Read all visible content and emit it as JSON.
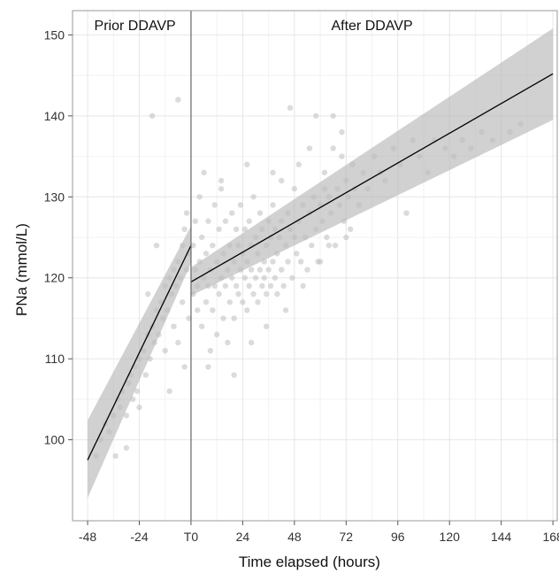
{
  "chart_data": {
    "type": "scatter",
    "xlabel": "Time elapsed (hours)",
    "ylabel": "PNa (mmol/L)",
    "xlim": [
      -55,
      170
    ],
    "ylim": [
      90,
      153
    ],
    "x_tick_values": [
      -48,
      -24,
      0,
      24,
      48,
      72,
      96,
      120,
      144,
      168
    ],
    "x_tick_labels": [
      "-48",
      "-24",
      "T0",
      "24",
      "48",
      "72",
      "96",
      "120",
      "144",
      "168"
    ],
    "y_ticks": [
      100,
      110,
      120,
      130,
      140,
      150
    ],
    "grid": true,
    "panel_labels": [
      {
        "text": "Prior DDAVP",
        "side": "left"
      },
      {
        "text": "After DDAVP",
        "side": "right"
      }
    ],
    "colors": {
      "points": "#bdbdbd",
      "fit_line": "#000000",
      "ci_band": "#b3b3b3",
      "separator": "#666666",
      "grid_major": "#e6e6e6",
      "grid_minor": "#f2f2f2"
    },
    "fit_segments": [
      {
        "name": "Prior DDAVP",
        "x": [
          -48,
          0
        ],
        "y": [
          97.5,
          124.0
        ],
        "ci_lower": [
          92.8,
          121.8
        ],
        "ci_upper": [
          102.4,
          126.4
        ]
      },
      {
        "name": "After DDAVP",
        "x": [
          0,
          168
        ],
        "y": [
          119.5,
          145.2
        ],
        "ci_lower": [
          117.8,
          139.5
        ],
        "ci_upper": [
          121.3,
          150.8
        ]
      }
    ],
    "points": [
      [
        -44,
        98
      ],
      [
        -42,
        100
      ],
      [
        -40,
        102
      ],
      [
        -38,
        101
      ],
      [
        -36,
        103
      ],
      [
        -35,
        98
      ],
      [
        -34,
        105
      ],
      [
        -33,
        104
      ],
      [
        -32,
        106
      ],
      [
        -30,
        103
      ],
      [
        -29,
        107
      ],
      [
        -28,
        108
      ],
      [
        -27,
        105
      ],
      [
        -26,
        109
      ],
      [
        -25,
        106
      ],
      [
        -24,
        110
      ],
      [
        -24,
        104
      ],
      [
        -22,
        111
      ],
      [
        -21,
        108
      ],
      [
        -20,
        113
      ],
      [
        -20,
        118
      ],
      [
        -19,
        110
      ],
      [
        -18,
        114
      ],
      [
        -17,
        112
      ],
      [
        -16,
        116
      ],
      [
        -15,
        113
      ],
      [
        -14,
        117
      ],
      [
        -13,
        115
      ],
      [
        -12,
        119
      ],
      [
        -12,
        111
      ],
      [
        -11,
        116
      ],
      [
        -10,
        120
      ],
      [
        -9,
        118
      ],
      [
        -8,
        121
      ],
      [
        -8,
        114
      ],
      [
        -7,
        119
      ],
      [
        -6,
        122
      ],
      [
        -6,
        112
      ],
      [
        -5,
        120
      ],
      [
        -4,
        124
      ],
      [
        -4,
        117
      ],
      [
        -3,
        126
      ],
      [
        -3,
        109
      ],
      [
        -2,
        121
      ],
      [
        -2,
        128
      ],
      [
        -1,
        123
      ],
      [
        -1,
        115
      ],
      [
        -6,
        142
      ],
      [
        -18,
        140
      ],
      [
        -30,
        99
      ],
      [
        -16,
        124
      ],
      [
        -10,
        106
      ],
      [
        1,
        118
      ],
      [
        1,
        124
      ],
      [
        2,
        121
      ],
      [
        2,
        127
      ],
      [
        3,
        116
      ],
      [
        3,
        119
      ],
      [
        4,
        122
      ],
      [
        4,
        130
      ],
      [
        5,
        114
      ],
      [
        5,
        125
      ],
      [
        6,
        120
      ],
      [
        6,
        133
      ],
      [
        7,
        117
      ],
      [
        7,
        123
      ],
      [
        8,
        119
      ],
      [
        8,
        127
      ],
      [
        9,
        111
      ],
      [
        9,
        121
      ],
      [
        10,
        116
      ],
      [
        10,
        124
      ],
      [
        11,
        119
      ],
      [
        11,
        129
      ],
      [
        12,
        113
      ],
      [
        12,
        122
      ],
      [
        13,
        118
      ],
      [
        13,
        126
      ],
      [
        14,
        120
      ],
      [
        14,
        131
      ],
      [
        15,
        115
      ],
      [
        15,
        123
      ],
      [
        16,
        119
      ],
      [
        16,
        127
      ],
      [
        17,
        121
      ],
      [
        17,
        112
      ],
      [
        18,
        117
      ],
      [
        18,
        124
      ],
      [
        19,
        120
      ],
      [
        19,
        128
      ],
      [
        20,
        115
      ],
      [
        20,
        122
      ],
      [
        21,
        119
      ],
      [
        21,
        126
      ],
      [
        22,
        118
      ],
      [
        22,
        124
      ],
      [
        23,
        121
      ],
      [
        23,
        129
      ],
      [
        24,
        117
      ],
      [
        24,
        123
      ],
      [
        25,
        120
      ],
      [
        25,
        126
      ],
      [
        26,
        116
      ],
      [
        26,
        122
      ],
      [
        27,
        119
      ],
      [
        27,
        127
      ],
      [
        28,
        121
      ],
      [
        28,
        124
      ],
      [
        29,
        118
      ],
      [
        29,
        130
      ],
      [
        30,
        120
      ],
      [
        30,
        125
      ],
      [
        31,
        117
      ],
      [
        31,
        123
      ],
      [
        32,
        121
      ],
      [
        32,
        128
      ],
      [
        33,
        119
      ],
      [
        33,
        126
      ],
      [
        34,
        122
      ],
      [
        34,
        120
      ],
      [
        35,
        124
      ],
      [
        35,
        118
      ],
      [
        36,
        121
      ],
      [
        36,
        127
      ],
      [
        37,
        119
      ],
      [
        37,
        125
      ],
      [
        38,
        122
      ],
      [
        38,
        129
      ],
      [
        39,
        120
      ],
      [
        39,
        126
      ],
      [
        40,
        123
      ],
      [
        40,
        118
      ],
      [
        41,
        125
      ],
      [
        42,
        121
      ],
      [
        42,
        127
      ],
      [
        43,
        119
      ],
      [
        44,
        124
      ],
      [
        45,
        128
      ],
      [
        45,
        122
      ],
      [
        46,
        126
      ],
      [
        47,
        120
      ],
      [
        48,
        125
      ],
      [
        48,
        131
      ],
      [
        49,
        123
      ],
      [
        50,
        127
      ],
      [
        51,
        122
      ],
      [
        52,
        129
      ],
      [
        53,
        125
      ],
      [
        54,
        121
      ],
      [
        55,
        128
      ],
      [
        56,
        124
      ],
      [
        57,
        130
      ],
      [
        58,
        126
      ],
      [
        59,
        122
      ],
      [
        60,
        129
      ],
      [
        61,
        127
      ],
      [
        62,
        133
      ],
      [
        63,
        125
      ],
      [
        64,
        130
      ],
      [
        65,
        128
      ],
      [
        66,
        136
      ],
      [
        67,
        124
      ],
      [
        68,
        131
      ],
      [
        69,
        129
      ],
      [
        70,
        135
      ],
      [
        71,
        127
      ],
      [
        72,
        132
      ],
      [
        73,
        130
      ],
      [
        74,
        126
      ],
      [
        75,
        134
      ],
      [
        76,
        131
      ],
      [
        78,
        129
      ],
      [
        80,
        133
      ],
      [
        82,
        131
      ],
      [
        85,
        135
      ],
      [
        88,
        133
      ],
      [
        90,
        132
      ],
      [
        94,
        136
      ],
      [
        97,
        134
      ],
      [
        100,
        128
      ],
      [
        103,
        137
      ],
      [
        106,
        135
      ],
      [
        110,
        133
      ],
      [
        113,
        137
      ],
      [
        118,
        136
      ],
      [
        122,
        135
      ],
      [
        126,
        137
      ],
      [
        130,
        136
      ],
      [
        135,
        138
      ],
      [
        140,
        137
      ],
      [
        148,
        138
      ],
      [
        153,
        139
      ],
      [
        46,
        141
      ],
      [
        58,
        140
      ],
      [
        66,
        140
      ],
      [
        55,
        136
      ],
      [
        62,
        131
      ],
      [
        35,
        114
      ],
      [
        28,
        112
      ],
      [
        44,
        116
      ],
      [
        52,
        119
      ],
      [
        60,
        122
      ],
      [
        70,
        138
      ],
      [
        38,
        133
      ],
      [
        20,
        108
      ],
      [
        8,
        109
      ],
      [
        14,
        132
      ],
      [
        26,
        134
      ],
      [
        42,
        132
      ],
      [
        50,
        134
      ],
      [
        64,
        124
      ],
      [
        72,
        125
      ]
    ]
  }
}
